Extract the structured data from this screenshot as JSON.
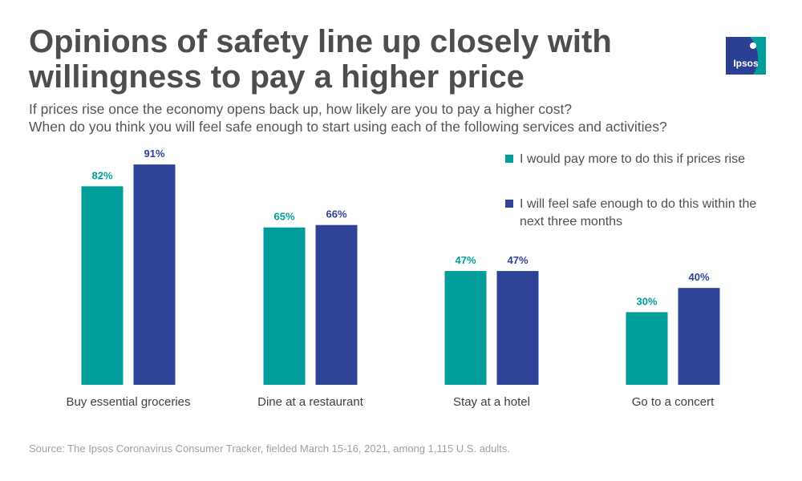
{
  "header": {
    "title": "Opinions of safety line up closely with willingness to pay a higher price",
    "subtitle_line1": "If prices rise once the economy opens back up, how likely are you to pay a higher cost?",
    "subtitle_line2": "When do you think you will feel safe enough to start using each of the following services and activities?"
  },
  "logo": {
    "text": "Ipsos",
    "colors": [
      "#009d9a",
      "#2b3f94"
    ]
  },
  "chart_data": {
    "type": "bar",
    "categories": [
      "Buy essential groceries",
      "Dine at a restaurant",
      "Stay at a hotel",
      "Go to a concert"
    ],
    "series": [
      {
        "name": "I would pay more to do this if prices rise",
        "values": [
          82,
          65,
          47,
          30
        ],
        "color": "#009d9a"
      },
      {
        "name": "I will feel safe enough to do this within the next three months",
        "values": [
          91,
          66,
          47,
          40
        ],
        "color": "#2e4298"
      }
    ],
    "value_suffix": "%",
    "ylim": [
      0,
      100
    ],
    "grid": false,
    "legend_position": "top-right"
  },
  "footer": {
    "source": "Source: The Ipsos Coronavirus Consumer Tracker, fielded March 15-16, 2021, among 1,115 U.S. adults."
  }
}
